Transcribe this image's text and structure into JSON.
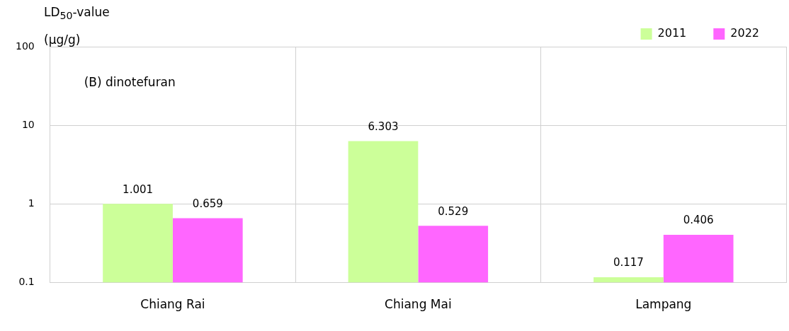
{
  "chart_data": {
    "type": "bar",
    "ylabel": "LD$_{50}$-value (µg/g)",
    "annotations": [
      "(B) dinotefuran"
    ],
    "categories": [
      "Chiang Rai",
      "Chiang Mai",
      "Lampang"
    ],
    "series": [
      {
        "name": "2011",
        "color": "#ccff99",
        "values": [
          1.001,
          6.303,
          0.117
        ]
      },
      {
        "name": "2022",
        "color": "#ff66ff",
        "values": [
          0.659,
          0.529,
          0.406
        ]
      }
    ],
    "log": true,
    "ylim": [
      0.1,
      100
    ],
    "yticks": [
      0.1,
      1,
      10,
      100
    ],
    "grid": true,
    "legend": "top right",
    "data_labels": true
  }
}
